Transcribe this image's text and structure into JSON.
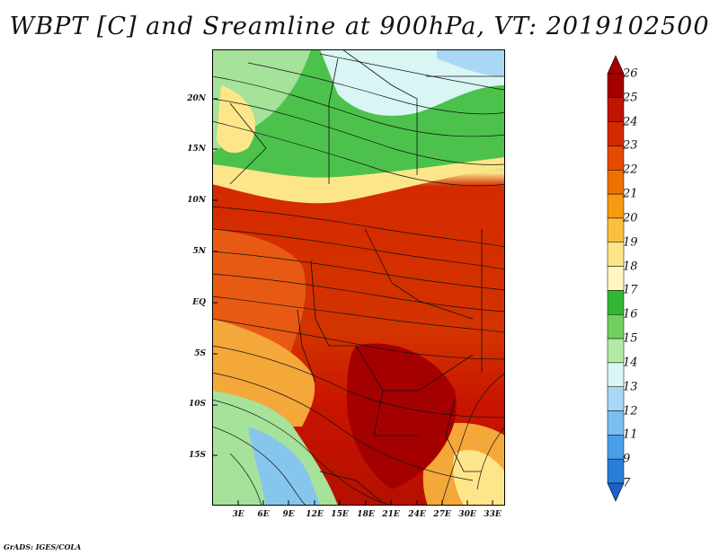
{
  "title": "WBPT [C] and Sreamline at 900hPa, VT: 2019102500",
  "footer": "GrADS: IGES/COLA",
  "map": {
    "lat_labels": [
      "20N",
      "15N",
      "10N",
      "5N",
      "EQ",
      "5S",
      "10S",
      "15S"
    ],
    "lon_labels": [
      "3E",
      "6E",
      "9E",
      "12E",
      "15E",
      "18E",
      "21E",
      "24E",
      "27E",
      "30E",
      "33E"
    ]
  },
  "colorbar": {
    "levels": [
      "26",
      "25",
      "24",
      "23",
      "22",
      "21",
      "20",
      "19",
      "18",
      "17",
      "16",
      "15",
      "14",
      "13",
      "12",
      "11",
      "9",
      "7"
    ],
    "colors": [
      "#a50000",
      "#c01500",
      "#d42a00",
      "#e64a00",
      "#f07000",
      "#f79a10",
      "#fbbf40",
      "#fde68a",
      "#fff6c0",
      "#33b833",
      "#70d060",
      "#b5eaa5",
      "#d9f6f4",
      "#a8d8f5",
      "#78bff0",
      "#4aa0e8",
      "#2a7ed8",
      "#1d5fc8"
    ],
    "top_color": "#a50000",
    "bottom_color": "#1d5fc8"
  },
  "colors": {
    "hot": "#c81400",
    "warm": "#e85a14",
    "mild": "#f4a83a",
    "cool_green": "#4cc24c",
    "light_green": "#a6e29a",
    "cold_blue": "#86c6ec",
    "streamline": "#111111"
  }
}
